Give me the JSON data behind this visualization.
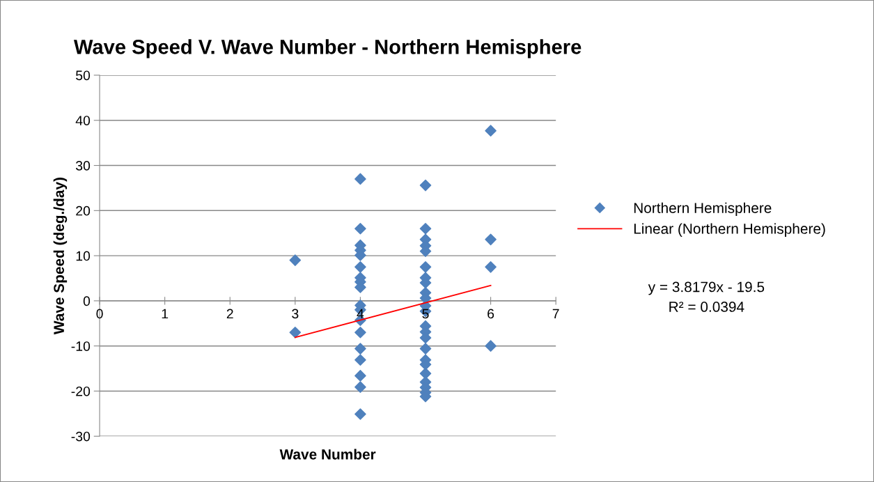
{
  "chart_data": {
    "type": "scatter",
    "title": "Wave Speed V. Wave Number - Northern Hemisphere",
    "xlabel": "Wave Number",
    "ylabel": "Wave Speed (deg./day)",
    "xlim": [
      0,
      7
    ],
    "xticks": [
      0,
      1,
      2,
      3,
      4,
      5,
      6,
      7
    ],
    "ylim": [
      -30,
      50
    ],
    "yticks": [
      -30,
      -20,
      -10,
      0,
      10,
      20,
      30,
      40,
      50
    ],
    "grid": "y",
    "legend": "right",
    "marker": "diamond",
    "series": [
      {
        "name": "Northern Hemisphere",
        "color": "#4f81bd",
        "x": [
          3,
          3,
          4,
          4,
          4,
          4,
          4,
          4,
          4,
          4,
          4,
          4,
          4,
          4,
          4,
          4,
          4,
          4,
          4,
          4,
          5,
          5,
          5,
          5,
          5,
          5,
          5,
          5,
          5,
          5,
          5,
          5,
          5,
          5,
          5,
          5,
          5,
          5,
          5,
          5,
          5,
          5,
          5,
          6,
          6,
          6,
          6
        ],
        "values": [
          9.0,
          -7.0,
          27.0,
          16.0,
          12.3,
          11.2,
          10.1,
          7.5,
          5.1,
          4.2,
          3.0,
          -1.0,
          -2.0,
          -7.0,
          -10.6,
          -13.1,
          -16.6,
          -19.1,
          -25.1,
          -4.3,
          25.6,
          16.0,
          13.6,
          12.2,
          11.0,
          7.5,
          5.1,
          4.0,
          1.8,
          0.6,
          -1.1,
          -2.3,
          -5.6,
          -6.9,
          -8.2,
          -10.6,
          -13.1,
          -14.1,
          -16.1,
          -18.0,
          -19.2,
          -20.3,
          -21.2,
          37.7,
          13.6,
          7.5,
          -10.0
        ]
      },
      {
        "name": "Linear (Northern Hemisphere)",
        "color": "#ff0000",
        "type": "line",
        "marker": "none",
        "line_style": "solid",
        "x": [
          3,
          6
        ],
        "values": [
          -8.1,
          3.4
        ]
      }
    ],
    "annotations": [
      "y = 3.8179x - 19.5",
      "R² = 0.0394"
    ]
  }
}
